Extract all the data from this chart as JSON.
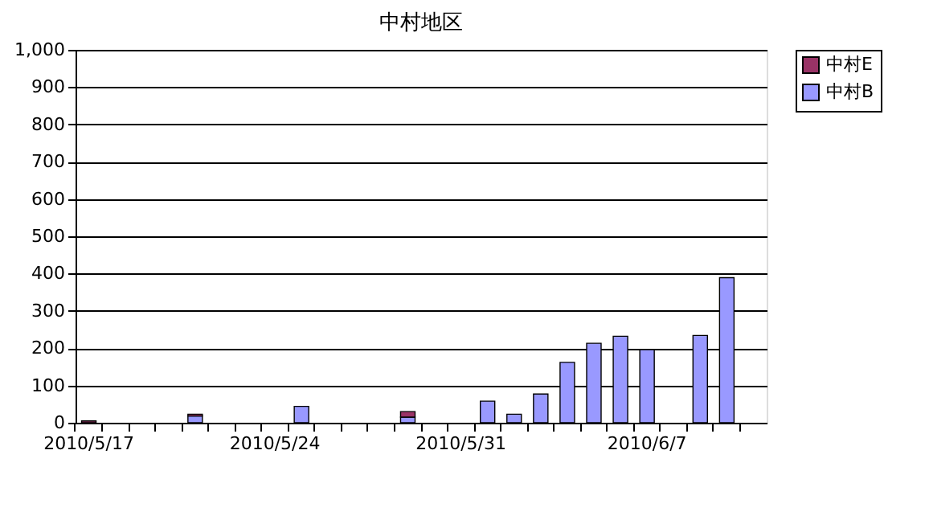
{
  "chart_data": {
    "type": "bar",
    "title": "中村地区",
    "stacked": true,
    "categories": [
      "2010/5/17",
      null,
      null,
      null,
      null,
      null,
      null,
      "2010/5/24",
      null,
      null,
      null,
      null,
      null,
      null,
      "2010/5/31",
      null,
      null,
      null,
      null,
      null,
      null,
      "2010/6/7",
      null,
      null,
      null,
      null
    ],
    "series": [
      {
        "name": "中村B",
        "color": "#9999ff",
        "values": [
          null,
          null,
          null,
          null,
          18,
          null,
          null,
          null,
          44,
          null,
          null,
          null,
          15,
          null,
          null,
          58,
          23,
          77,
          162,
          213,
          232,
          196,
          null,
          234,
          389,
          null
        ]
      },
      {
        "name": "中村E",
        "color": "#993366",
        "values": [
          5,
          null,
          null,
          null,
          5,
          null,
          null,
          null,
          null,
          null,
          null,
          null,
          15,
          null,
          null,
          null,
          null,
          null,
          null,
          null,
          null,
          null,
          null,
          null,
          null,
          null
        ]
      }
    ],
    "ylim": [
      0,
      1000
    ],
    "yticks": [
      0,
      100,
      200,
      300,
      400,
      500,
      600,
      700,
      800,
      900,
      {
        "value": 1000,
        "label": "1,000"
      }
    ],
    "grid": "y",
    "legend": "right"
  }
}
